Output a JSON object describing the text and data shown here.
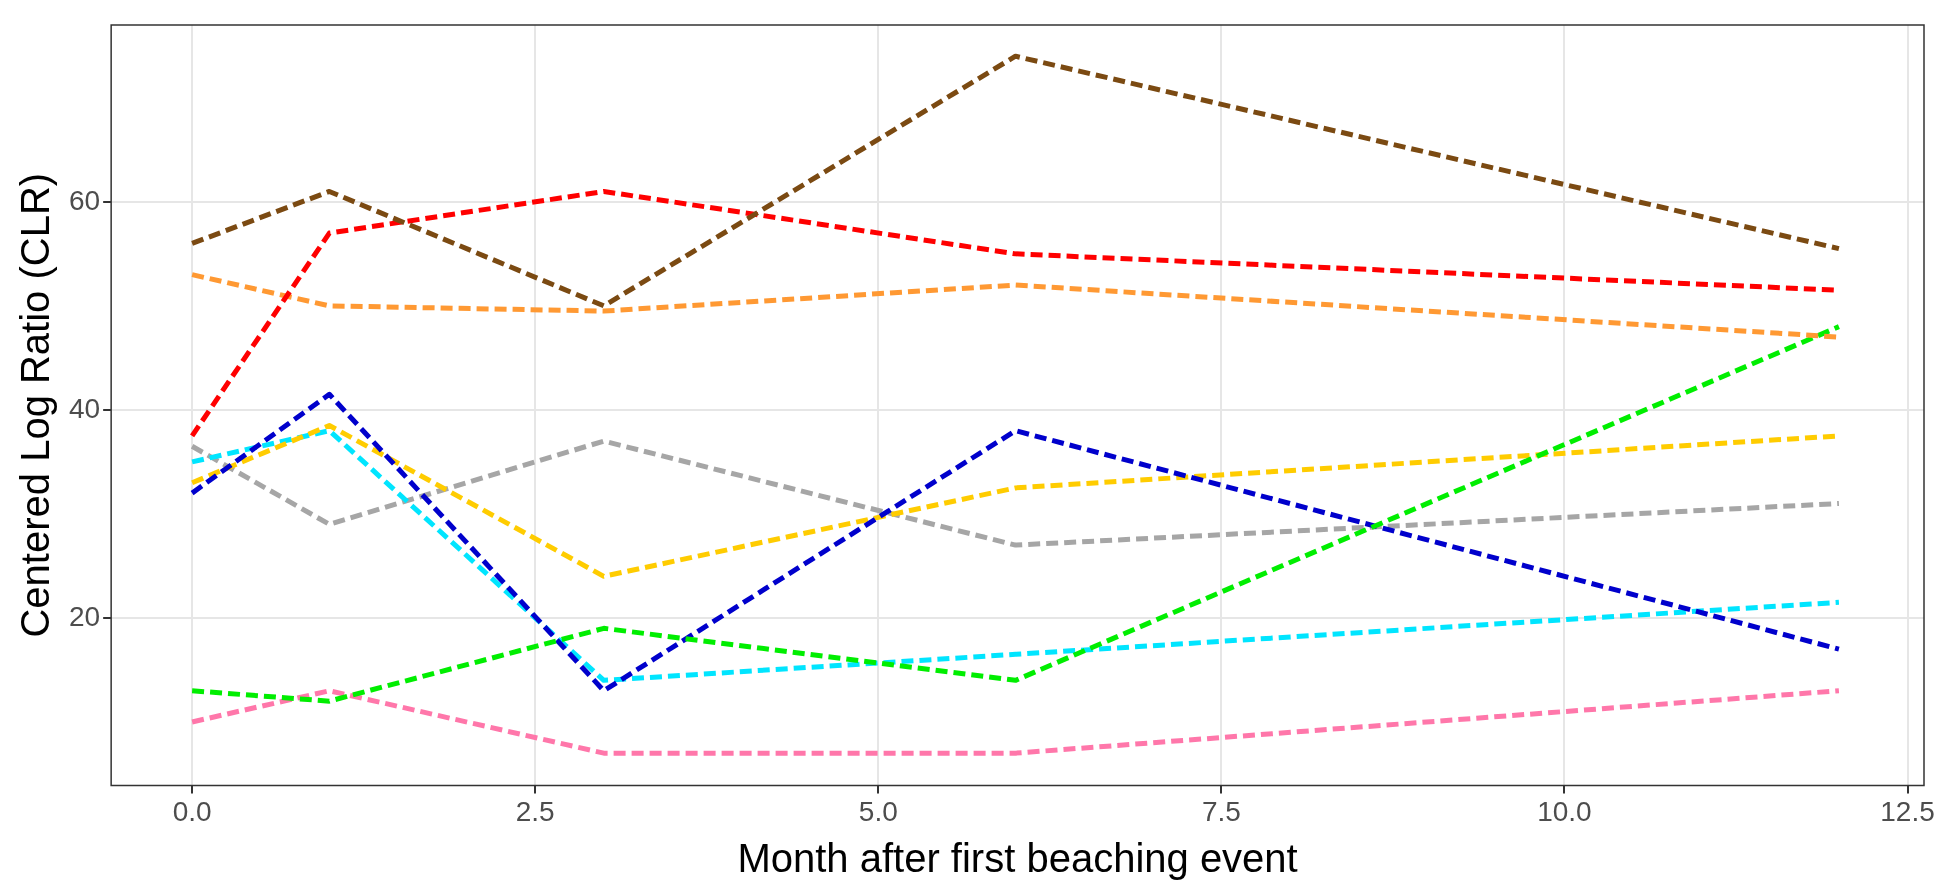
{
  "chart_data": {
    "type": "line",
    "xlabel": "Month after first beaching event",
    "ylabel": "Centered Log Ratio (CLR)",
    "xlim": [
      -0.59,
      12.62
    ],
    "ylim": [
      3.9,
      77
    ],
    "xticks": [
      {
        "value": 0,
        "label": "0.0"
      },
      {
        "value": 2.5,
        "label": "2.5"
      },
      {
        "value": 5,
        "label": "5.0"
      },
      {
        "value": 7.5,
        "label": "7.5"
      },
      {
        "value": 10,
        "label": "10.0"
      },
      {
        "value": 12.5,
        "label": "12.5"
      }
    ],
    "yticks": [
      20,
      40,
      60
    ],
    "x": [
      0,
      1,
      3,
      6,
      12
    ],
    "grid": true,
    "legend": false,
    "marker": "none",
    "line_style": "dashed",
    "series": [
      {
        "color": "#7b4a12",
        "values": [
          56,
          61,
          50,
          74,
          55.5
        ]
      },
      {
        "color": "#ff0000",
        "values": [
          37.5,
          57,
          61,
          55,
          51.5
        ]
      },
      {
        "color": "#ff9933",
        "values": [
          53,
          50,
          49.5,
          52,
          47
        ]
      },
      {
        "color": "#00ee00",
        "values": [
          13,
          12,
          19,
          14,
          48
        ]
      },
      {
        "color": "#0000cc",
        "values": [
          32,
          41.5,
          13,
          38,
          17
        ]
      },
      {
        "color": "#ffcc00",
        "values": [
          33,
          38.5,
          24,
          32.5,
          37.5
        ]
      },
      {
        "color": "#00e5ff",
        "values": [
          35,
          38,
          14,
          16.5,
          21.5
        ]
      },
      {
        "color": "#a6a6a6",
        "values": [
          36.5,
          29,
          37,
          27,
          31
        ]
      },
      {
        "color": "#ff77aa",
        "values": [
          10,
          13,
          7,
          7,
          13
        ]
      }
    ]
  }
}
